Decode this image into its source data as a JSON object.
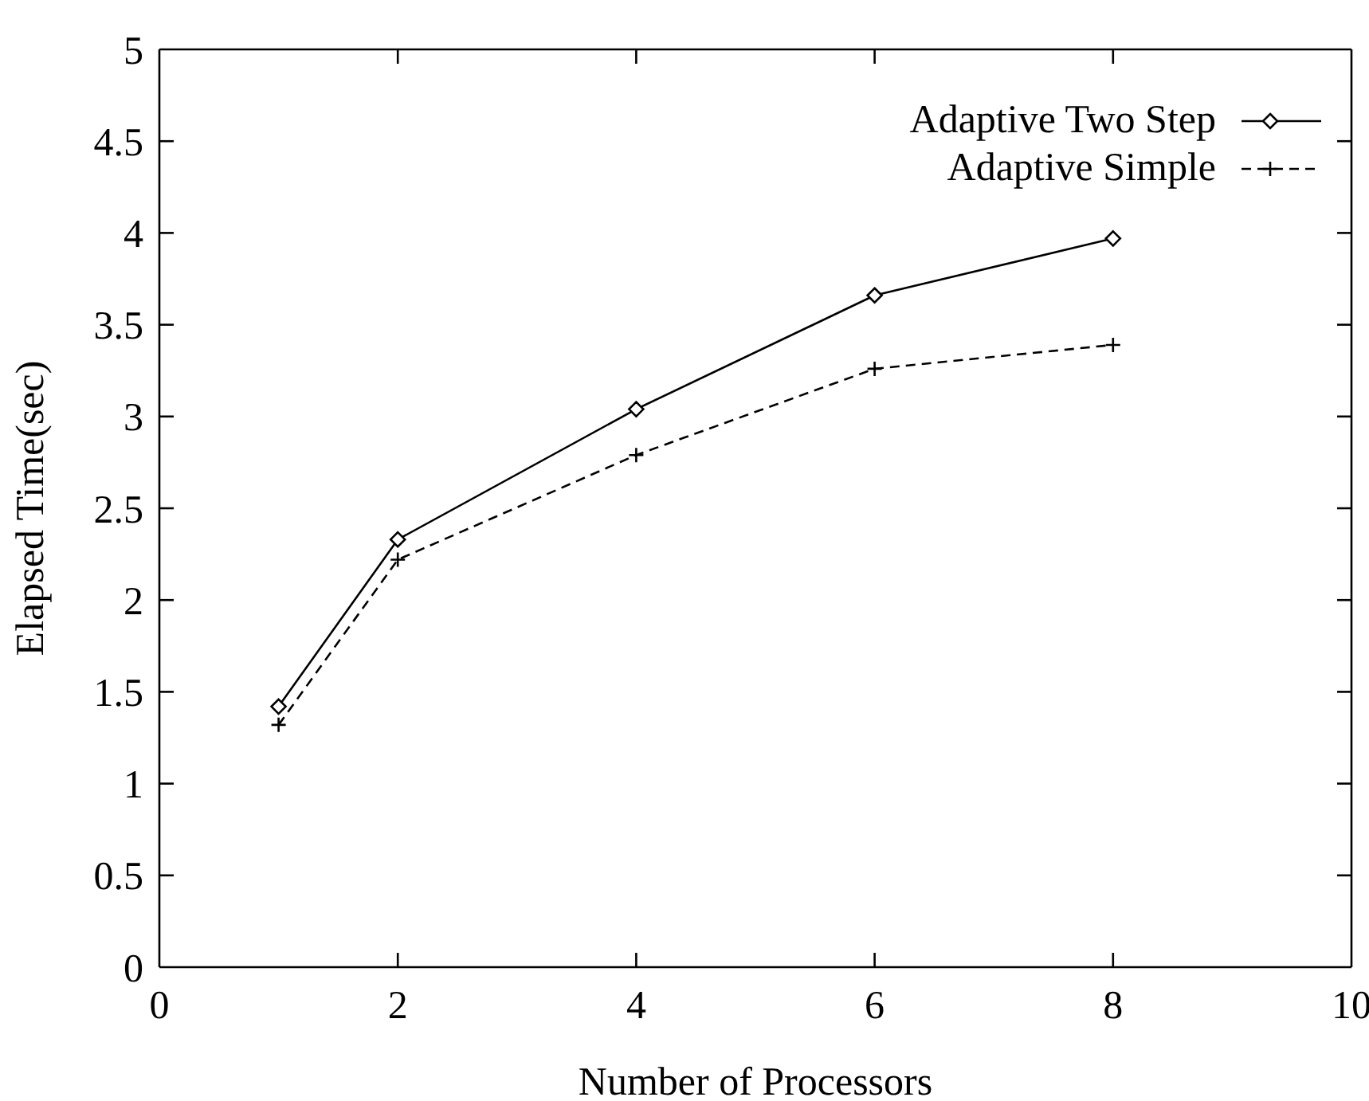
{
  "chart_data": {
    "type": "line",
    "xlabel": "Number of Processors",
    "ylabel": "Elapsed Time(sec)",
    "x": [
      1,
      2,
      4,
      6,
      8
    ],
    "series": [
      {
        "name": "Adaptive Two Step",
        "color": "#000000",
        "values": [
          1.42,
          2.33,
          3.04,
          3.66,
          3.97
        ],
        "marker": "diamond",
        "line_style": "solid"
      },
      {
        "name": "Adaptive Simple",
        "color": "#000000",
        "values": [
          1.32,
          2.22,
          2.79,
          3.26,
          3.39
        ],
        "marker": "cross",
        "line_style": "dashed"
      }
    ],
    "xlim": [
      0,
      10
    ],
    "xticks": [
      0,
      2,
      4,
      6,
      8,
      10
    ],
    "ylim": [
      0,
      5
    ],
    "yticks": [
      0,
      0.5,
      1,
      1.5,
      2,
      2.5,
      3,
      3.5,
      4,
      4.5,
      5
    ],
    "legend": "top right"
  }
}
